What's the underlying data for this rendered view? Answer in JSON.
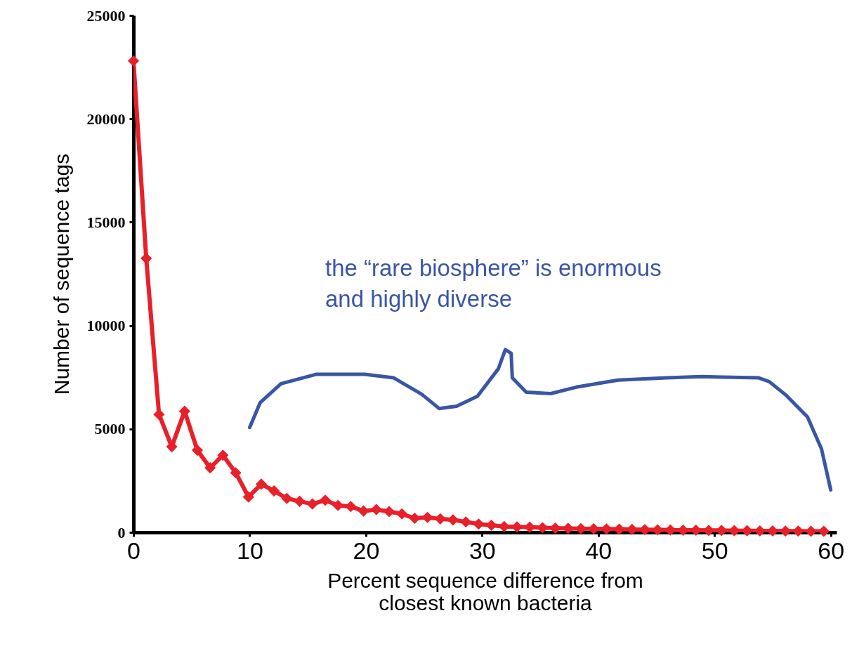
{
  "chart_data": {
    "type": "line",
    "xlabel": "Percent sequence difference from\nclosest known bacteria",
    "ylabel": "Number of sequence tags",
    "annotations": [
      {
        "text": "the “rare biosphere” is enormous\nand highly diverse"
      }
    ],
    "xlim": [
      0,
      60.5
    ],
    "xticks": [
      0,
      10,
      20,
      30,
      40,
      50,
      60
    ],
    "ylim": [
      0,
      25000
    ],
    "yticks": [
      0,
      5000,
      10000,
      15000,
      20000,
      25000
    ],
    "grid": false,
    "marker": "diamond",
    "series": [
      {
        "color": "#e8202a",
        "x": [
          0,
          1.1,
          2.2,
          3.3,
          4.4,
          5.5,
          6.6,
          7.7,
          8.8,
          9.9,
          11,
          12.1,
          13.2,
          14.3,
          15.4,
          16.5,
          17.6,
          18.7,
          19.8,
          20.9,
          22,
          23.1,
          24.2,
          25.3,
          26.4,
          27.5,
          28.6,
          29.7,
          30.8,
          31.9,
          33,
          34.1,
          35.2,
          36.3,
          37.4,
          38.5,
          39.6,
          40.7,
          41.8,
          42.9,
          44,
          45.1,
          46.2,
          47.3,
          48.4,
          49.5,
          50.6,
          51.7,
          52.8,
          53.9,
          55,
          56.1,
          57.2,
          58.3,
          59.4
        ],
        "values": [
          22800,
          13250,
          5700,
          4140,
          5860,
          3970,
          3120,
          3730,
          2880,
          1710,
          2330,
          2000,
          1640,
          1500,
          1370,
          1550,
          1300,
          1250,
          1030,
          1100,
          1000,
          890,
          680,
          720,
          650,
          600,
          500,
          400,
          340,
          280,
          260,
          250,
          220,
          200,
          190,
          180,
          170,
          160,
          150,
          140,
          130,
          120,
          110,
          100,
          100,
          90,
          90,
          80,
          80,
          70,
          70,
          60,
          60,
          50,
          50
        ]
      },
      {
        "color": "#3a55a4",
        "marker": "none",
        "x": [
          10,
          10.9,
          12.7,
          15.7,
          19.9,
          22.4,
          24.8,
          26.3,
          27.8,
          29.6,
          31.4,
          32,
          32.5,
          32.6,
          33.8,
          35.9,
          38.1,
          41.7,
          45.9,
          48.9,
          53.8,
          54.7,
          56.2,
          58,
          59.2,
          60
        ],
        "values": [
          5070,
          6270,
          7190,
          7640,
          7640,
          7470,
          6680,
          5990,
          6100,
          6580,
          7910,
          8840,
          8660,
          7470,
          6780,
          6710,
          7020,
          7360,
          7470,
          7530,
          7470,
          7290,
          6610,
          5580,
          4040,
          2050
        ]
      }
    ]
  }
}
